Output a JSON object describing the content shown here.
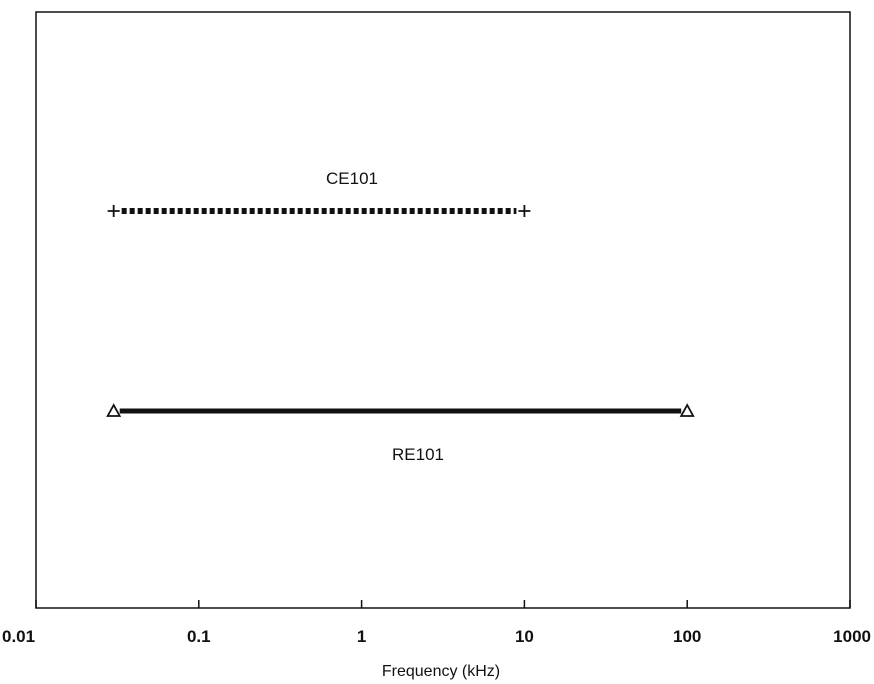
{
  "chart_data": {
    "type": "line",
    "title": "",
    "xlabel": "Frequency (kHz)",
    "ylabel": "",
    "x_scale": "log",
    "xlim": [
      0.01,
      1000
    ],
    "x_ticks": [
      {
        "value": 0.01,
        "label": "0.01"
      },
      {
        "value": 0.1,
        "label": "0.1"
      },
      {
        "value": 1,
        "label": "1"
      },
      {
        "value": 10,
        "label": "10"
      },
      {
        "value": 100,
        "label": "100"
      },
      {
        "value": 1000,
        "label": "1000"
      }
    ],
    "grid": false,
    "legend": "none",
    "series": [
      {
        "name": "CE101",
        "x_start": 0.03,
        "x_end": 10,
        "line_style": "dotted",
        "marker": "plus",
        "color": "#111111"
      },
      {
        "name": "RE101",
        "x_start": 0.03,
        "x_end": 100,
        "line_style": "solid",
        "marker": "triangle",
        "color": "#111111"
      }
    ]
  }
}
